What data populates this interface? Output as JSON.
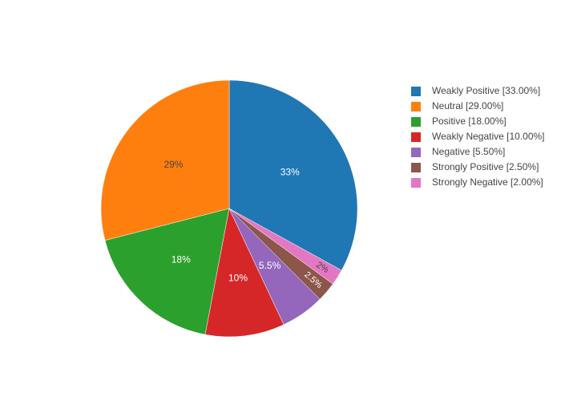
{
  "chart_data": {
    "type": "pie",
    "categories": [
      "Weakly Positive [33.00%]",
      "Neutral [29.00%]",
      "Positive [18.00%]",
      "Weakly Negative [10.00%]",
      "Negative [5.50%]",
      "Strongly Positive [2.50%]",
      "Strongly Negative [2.00%]"
    ],
    "values": [
      33,
      29,
      18,
      10,
      5.5,
      2.5,
      2
    ],
    "value_labels": [
      "33%",
      "29%",
      "18%",
      "10%",
      "5.5%",
      "2.5%",
      "2%"
    ],
    "colors": [
      "#1f77b4",
      "#ff7f0e",
      "#2ca02c",
      "#d62728",
      "#9467bd",
      "#8c564b",
      "#e377c2"
    ],
    "legend": "right"
  }
}
